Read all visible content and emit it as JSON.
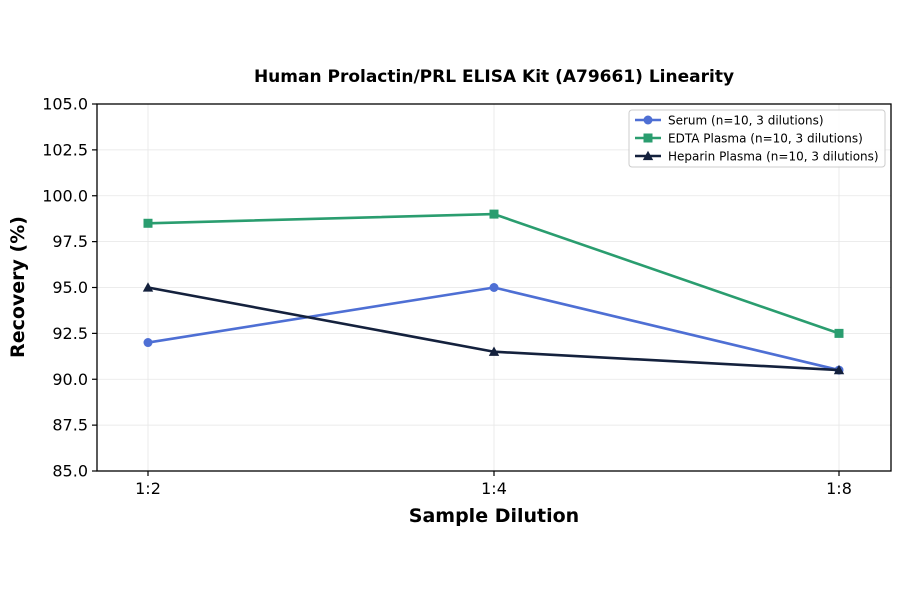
{
  "chart_data": {
    "type": "line",
    "title": "Human Prolactin/PRL ELISA Kit (A79661) Linearity",
    "xlabel": "Sample Dilution",
    "ylabel": "Recovery (%)",
    "categories": [
      "1:2",
      "1:4",
      "1:8"
    ],
    "ylim": [
      85.0,
      105.0
    ],
    "yticks": [
      "85.0",
      "87.5",
      "90.0",
      "92.5",
      "95.0",
      "97.5",
      "100.0",
      "102.5",
      "105.0"
    ],
    "grid": true,
    "legend_position": "top-right",
    "series": [
      {
        "name": "Serum (n=10, 3 dilutions)",
        "values": [
          92.0,
          95.0,
          90.5
        ],
        "color": "#4e6fd4",
        "marker": "circle"
      },
      {
        "name": "EDTA Plasma (n=10, 3 dilutions)",
        "values": [
          98.5,
          99.0,
          92.5
        ],
        "color": "#2a9d6f",
        "marker": "square"
      },
      {
        "name": "Heparin Plasma (n=10, 3 dilutions)",
        "values": [
          95.0,
          91.5,
          90.5
        ],
        "color": "#14213d",
        "marker": "triangle"
      }
    ]
  }
}
